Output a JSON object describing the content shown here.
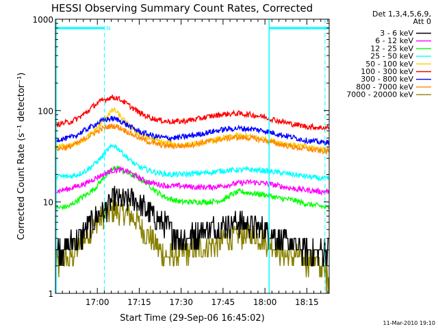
{
  "chart_data": {
    "type": "line",
    "title": "HESSI Observing Summary Count Rates, Corrected",
    "xlabel": "Start Time (29-Sep-06 16:45:02)",
    "ylabel": "Corrected Count Rate (s⁻¹ detector⁻¹)",
    "yscale": "log",
    "ylim": [
      1,
      1000
    ],
    "xlim_minutes": [
      0,
      98
    ],
    "xticks": [
      {
        "label": "17:00",
        "minute": 15
      },
      {
        "label": "17:15",
        "minute": 30
      },
      {
        "label": "17:30",
        "minute": 45
      },
      {
        "label": "17:45",
        "minute": 60
      },
      {
        "label": "18:00",
        "minute": 75
      },
      {
        "label": "18:15",
        "minute": 90
      }
    ],
    "yticks": [
      {
        "label": "1",
        "value": 1
      },
      {
        "label": "10",
        "value": 10
      },
      {
        "label": "100",
        "value": 100
      },
      {
        "label": "1000",
        "value": 1000
      }
    ],
    "legend_header": [
      "Det 1,3,4,5,6,9,",
      "Att 0"
    ],
    "legend_position": "top-right outside",
    "night_marker_label": "N",
    "night_periods_minutes": [
      [
        0,
        17.5
      ],
      [
        76.5,
        98
      ]
    ],
    "saa_lines_minutes": [
      17.5,
      96.5
    ],
    "annotation": "11-Mar-2010 19:10",
    "series": [
      {
        "name": "3 - 6 keV",
        "color": "#000000",
        "x": [
          0,
          5,
          8,
          11,
          13,
          15,
          17,
          19,
          21,
          23,
          25,
          27,
          29,
          31,
          33,
          35,
          38,
          41,
          44,
          47,
          50,
          55,
          60,
          65,
          70,
          75,
          78,
          82,
          86,
          90,
          94,
          98
        ],
        "y": [
          3,
          3.4,
          4,
          5,
          6,
          7,
          8,
          9,
          11,
          10.5,
          10,
          11,
          10,
          9,
          8,
          7,
          6,
          5,
          4.2,
          4,
          4.5,
          5,
          5.5,
          6,
          5.5,
          5,
          4.5,
          3.5,
          3.3,
          3,
          3,
          3
        ]
      },
      {
        "name": "6 - 12 keV",
        "color": "#ff00ff",
        "x": [
          0,
          5,
          8,
          11,
          14,
          17,
          20,
          23,
          26,
          29,
          32,
          35,
          40,
          45,
          50,
          55,
          60,
          65,
          70,
          75,
          80,
          85,
          90,
          95,
          98
        ],
        "y": [
          13,
          14,
          15,
          16,
          18,
          20,
          22,
          22.5,
          21.5,
          19,
          17,
          16,
          15,
          15,
          14.5,
          14.5,
          15,
          16,
          16.5,
          16,
          15,
          14,
          13.5,
          13,
          13
        ]
      },
      {
        "name": "12 - 25 keV",
        "color": "#00ff00",
        "x": [
          0,
          5,
          8,
          11,
          14,
          17,
          20,
          22,
          24,
          27,
          30,
          33,
          36,
          40,
          45,
          50,
          55,
          60,
          63,
          66,
          70,
          75,
          80,
          85,
          90,
          95,
          98
        ],
        "y": [
          8.5,
          9,
          10.5,
          12,
          14,
          18,
          22,
          24,
          22,
          20,
          18,
          16,
          13,
          11,
          10,
          10,
          10,
          10.5,
          12,
          13,
          12.5,
          12,
          11,
          10.5,
          9.5,
          9,
          8.5
        ]
      },
      {
        "name": "25 - 50 keV",
        "color": "#00ffff",
        "x": [
          0,
          5,
          8,
          11,
          14,
          17,
          19,
          21,
          23,
          26,
          29,
          32,
          36,
          40,
          45,
          50,
          55,
          60,
          65,
          70,
          75,
          80,
          85,
          90,
          95,
          98
        ],
        "y": [
          19,
          19,
          20,
          22,
          26,
          32,
          38,
          42,
          37,
          30,
          25,
          23,
          21,
          20,
          20,
          20.5,
          21,
          22,
          22.5,
          22.5,
          22,
          21,
          20,
          19,
          18,
          18
        ]
      },
      {
        "name": "50 - 100 keV",
        "color": "#ffcc00",
        "x": [
          0,
          5,
          8,
          11,
          14,
          17,
          19,
          21,
          23,
          26,
          29,
          32,
          36,
          40,
          45,
          50,
          55,
          60,
          65,
          70,
          75,
          80,
          85,
          90,
          95,
          98
        ],
        "y": [
          40,
          41,
          44,
          50,
          60,
          75,
          92,
          103,
          88,
          70,
          58,
          52,
          47,
          44,
          42,
          43,
          46,
          50,
          53,
          52,
          49,
          45,
          42,
          40,
          38,
          37
        ]
      },
      {
        "name": "100 - 300 keV",
        "color": "#ff0000",
        "x": [
          0,
          5,
          8,
          11,
          14,
          17,
          20,
          22,
          24,
          27,
          30,
          33,
          36,
          40,
          45,
          50,
          55,
          60,
          65,
          70,
          75,
          80,
          85,
          90,
          95,
          98
        ],
        "y": [
          70,
          75,
          82,
          95,
          115,
          130,
          140,
          138,
          128,
          110,
          95,
          86,
          80,
          76,
          76,
          80,
          86,
          91,
          93,
          90,
          85,
          77,
          71,
          67,
          65,
          65
        ]
      },
      {
        "name": "300 - 800 keV",
        "color": "#0000ff",
        "x": [
          0,
          5,
          8,
          11,
          14,
          17,
          20,
          22,
          24,
          27,
          30,
          33,
          36,
          40,
          45,
          50,
          55,
          60,
          65,
          70,
          75,
          80,
          85,
          90,
          95,
          98
        ],
        "y": [
          48,
          50,
          55,
          62,
          70,
          78,
          82,
          80,
          75,
          66,
          59,
          55,
          52,
          50,
          51,
          54,
          58,
          62,
          64,
          63,
          60,
          55,
          51,
          47,
          45,
          45
        ]
      },
      {
        "name": "800 - 7000 keV",
        "color": "#ff8800",
        "x": [
          0,
          5,
          8,
          11,
          14,
          17,
          20,
          22,
          24,
          27,
          30,
          33,
          36,
          40,
          45,
          50,
          55,
          60,
          65,
          70,
          75,
          80,
          85,
          90,
          95,
          98
        ],
        "y": [
          38,
          40,
          44,
          50,
          57,
          64,
          68,
          67,
          63,
          56,
          50,
          46,
          43,
          41,
          41,
          43,
          46,
          49,
          51,
          50,
          47,
          43,
          40,
          38,
          36,
          36
        ]
      },
      {
        "name": "7000 - 20000 keV",
        "color": "#888000",
        "x": [
          0,
          3,
          6,
          9,
          12,
          15,
          17,
          19,
          21,
          23,
          25,
          27,
          29,
          31,
          34,
          37,
          40,
          43,
          46,
          50,
          55,
          60,
          65,
          70,
          73,
          76,
          80,
          85,
          90,
          95,
          98
        ],
        "y": [
          2,
          2.2,
          2.5,
          3.5,
          4.5,
          6,
          7,
          7.5,
          8,
          7.8,
          7.5,
          7,
          6.5,
          5,
          4,
          3,
          2.5,
          2.5,
          2.8,
          3,
          3.3,
          3.8,
          4.2,
          4.5,
          4.2,
          3.5,
          3,
          2.5,
          2.3,
          2,
          1.5
        ]
      }
    ]
  }
}
